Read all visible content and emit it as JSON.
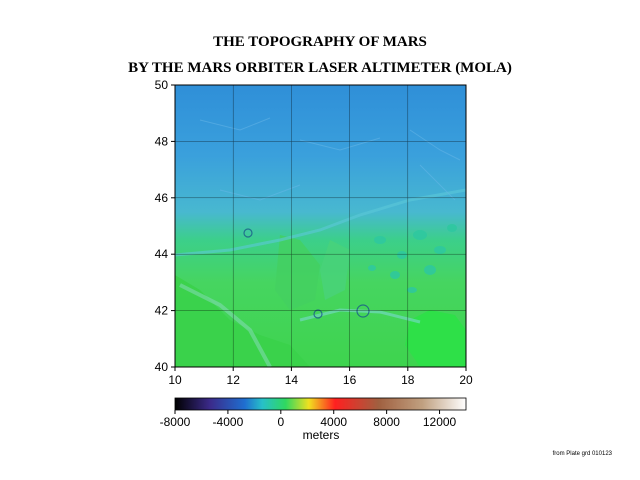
{
  "title_line1": "THE TOPOGRAPHY OF MARS",
  "title_line2": "BY THE MARS ORBITER LASER ALTIMETER (MOLA)",
  "map": {
    "x_range": [
      10,
      20
    ],
    "y_range": [
      40,
      50
    ],
    "x_ticks": [
      "10",
      "12",
      "14",
      "16",
      "18",
      "20"
    ],
    "y_ticks": [
      "40",
      "42",
      "44",
      "46",
      "48",
      "50"
    ]
  },
  "colorbar": {
    "range_m": [
      -8000,
      14000
    ],
    "tick_labels": [
      "-8000",
      "-4000",
      "0",
      "4000",
      "8000",
      "12000"
    ],
    "tick_values": [
      -8000,
      -4000,
      0,
      4000,
      8000,
      12000
    ],
    "unit_label": "meters",
    "colors": [
      "#000000",
      "#3b2a8a",
      "#1f6fd0",
      "#27c0c8",
      "#2fd860",
      "#f0e020",
      "#ff2020",
      "#a06040",
      "#c0a080",
      "#ffffff"
    ]
  },
  "credit": "from Plate grd 010123"
}
